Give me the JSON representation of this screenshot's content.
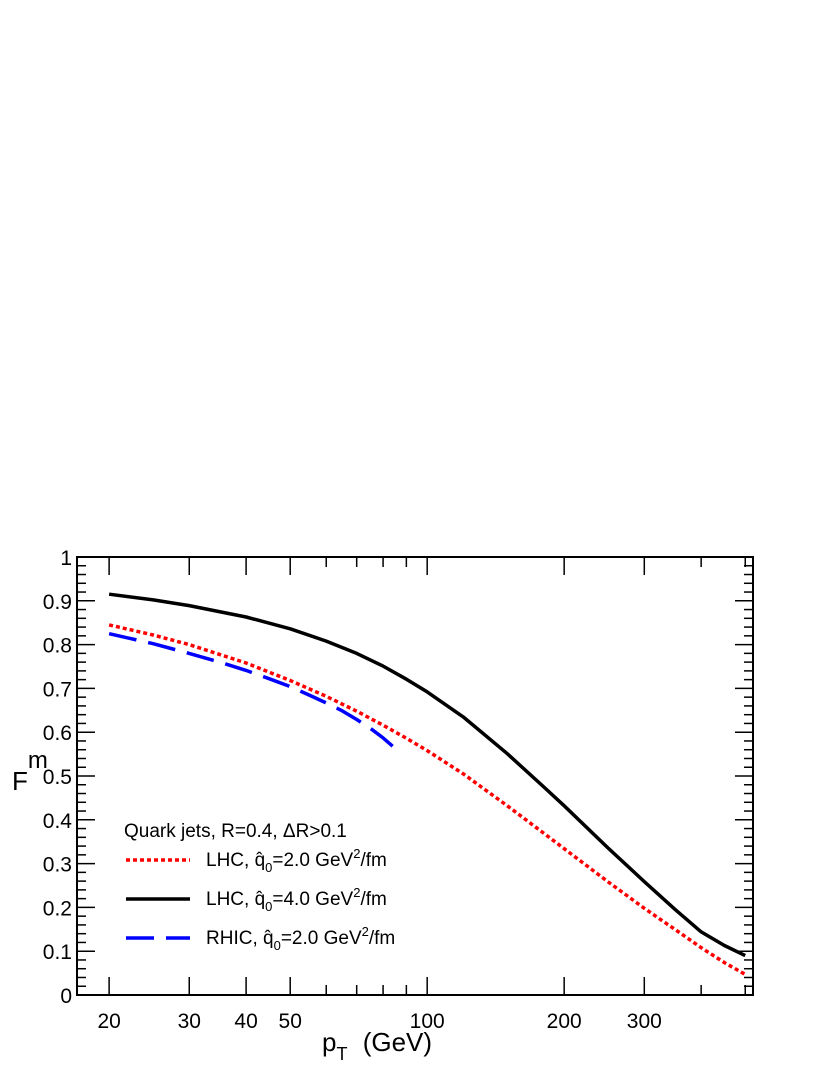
{
  "chart_data": {
    "type": "line",
    "title": "",
    "xlabel": "p_T (GeV)",
    "ylabel": "F^m",
    "x_scale": "log",
    "xlim": [
      17,
      520
    ],
    "ylim": [
      0,
      1
    ],
    "x_tick_labels": [
      "20",
      "30",
      "40",
      "50",
      "100",
      "200",
      "300"
    ],
    "y_tick_labels": [
      "0",
      "0.1",
      "0.2",
      "0.3",
      "0.4",
      "0.5",
      "0.6",
      "0.7",
      "0.8",
      "0.9",
      "1"
    ],
    "grid": false,
    "legend_title": "Quark jets, R=0.4, ΔR>0.1",
    "legend_placement": "bottom-left",
    "series": [
      {
        "name": "LHC, q̂0=2.0 GeV²/fm",
        "legend": {
          "prefix": "LHC, ",
          "qsub": "0",
          "value": "=2.0 GeV",
          "sup": "2",
          "suffix": "/fm"
        },
        "color": "#ff0000",
        "style": "dotted",
        "x": [
          20,
          25,
          30,
          40,
          50,
          60,
          70,
          80,
          90,
          100,
          120,
          150,
          180,
          200,
          250,
          300,
          350,
          400,
          450,
          500
        ],
        "y": [
          0.845,
          0.822,
          0.8,
          0.758,
          0.718,
          0.682,
          0.648,
          0.616,
          0.586,
          0.558,
          0.505,
          0.432,
          0.37,
          0.334,
          0.258,
          0.198,
          0.15,
          0.108,
          0.074,
          0.047
        ]
      },
      {
        "name": "LHC, q̂0=4.0 GeV²/fm",
        "legend": {
          "prefix": "LHC, ",
          "qsub": "0",
          "value": "=4.0 GeV",
          "sup": "2",
          "suffix": "/fm"
        },
        "color": "#000000",
        "style": "solid",
        "x": [
          20,
          25,
          30,
          40,
          50,
          60,
          70,
          80,
          90,
          100,
          120,
          150,
          180,
          200,
          250,
          300,
          350,
          400,
          450,
          500
        ],
        "y": [
          0.915,
          0.902,
          0.889,
          0.863,
          0.836,
          0.808,
          0.78,
          0.751,
          0.721,
          0.692,
          0.635,
          0.551,
          0.476,
          0.432,
          0.335,
          0.259,
          0.196,
          0.144,
          0.113,
          0.09
        ]
      },
      {
        "name": "RHIC, q̂0=2.0 GeV²/fm",
        "legend": {
          "prefix": "RHIC, ",
          "qsub": "0",
          "value": "=2.0 GeV",
          "sup": "2",
          "suffix": "/fm"
        },
        "color": "#0000ff",
        "style": "dashed",
        "x": [
          20,
          25,
          30,
          35,
          40,
          45,
          50,
          55,
          60,
          65,
          70,
          75,
          80,
          85
        ],
        "y": [
          0.825,
          0.802,
          0.78,
          0.76,
          0.741,
          0.722,
          0.704,
          0.685,
          0.667,
          0.649,
          0.629,
          0.609,
          0.587,
          0.563
        ]
      }
    ]
  }
}
